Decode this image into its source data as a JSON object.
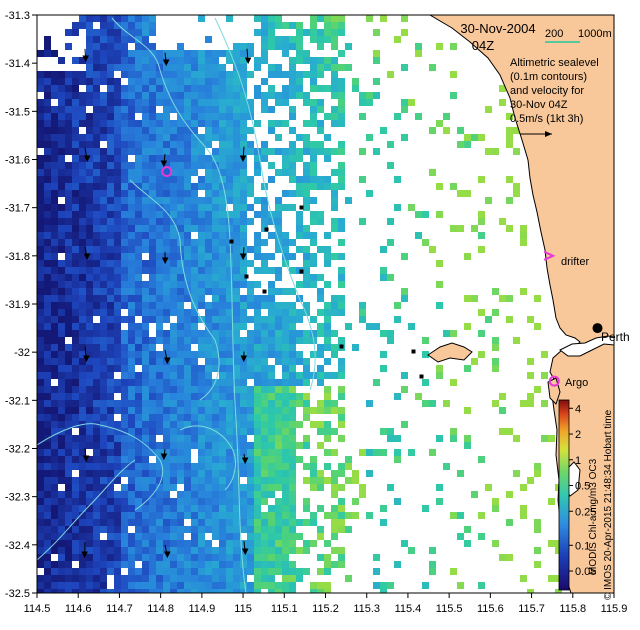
{
  "header": {
    "date": "30-Nov-2004",
    "time": "04Z",
    "scale_value": "200",
    "scale_unit": "1000m"
  },
  "legend_note": {
    "line1": "Altimetric sealevel",
    "line2": "(0.1m contours)",
    "line3": "and velocity for",
    "line4": "30-Nov 04Z",
    "line5": "0.5m/s (1kt 3h)"
  },
  "labels": {
    "drifter": "drifter",
    "perth": "Perth",
    "argo": "Argo"
  },
  "side_text": {
    "chl": "MODIS Chl-a mg/m3 OC3",
    "credit": "© IMOS 20-Apr-2015 21:48:34 Hobart time"
  },
  "colorbar": {
    "tick_labels": [
      "4",
      "2",
      "1",
      "0.5",
      "0.25",
      "0.1",
      "0.05"
    ],
    "tick_values": [
      4,
      2,
      1,
      0.5,
      0.25,
      0.1,
      0.05
    ],
    "min": 0.03,
    "max": 5
  },
  "axes": {
    "x_ticks": [
      "114.5",
      "114.6",
      "114.7",
      "114.8",
      "114.9",
      "115",
      "115.1",
      "115.2",
      "115.3",
      "115.4",
      "115.5",
      "115.6",
      "115.7",
      "115.8",
      "115.9"
    ],
    "y_ticks": [
      "-31.3",
      "-31.4",
      "-31.5",
      "-31.6",
      "-31.7",
      "-31.8",
      "-31.9",
      "-32",
      "-32.1",
      "-32.2",
      "-32.3",
      "-32.4",
      "-32.5"
    ],
    "xlim": [
      114.5,
      115.9
    ],
    "ylim": [
      -32.5,
      -31.3
    ]
  },
  "colors": {
    "land": "#f9c89a",
    "sea_contour": "#7fd9e0",
    "argo": "#e838d8",
    "drifter": "#e838d8",
    "scale_bar": "#20c8a0"
  },
  "markers": {
    "argo_positions": [
      [
        114.815,
        -31.625
      ],
      [
        115.755,
        -32.06
      ]
    ],
    "drifter_position": [
      115.745,
      -31.8
    ],
    "perth_position": [
      115.86,
      -31.95
    ]
  }
}
